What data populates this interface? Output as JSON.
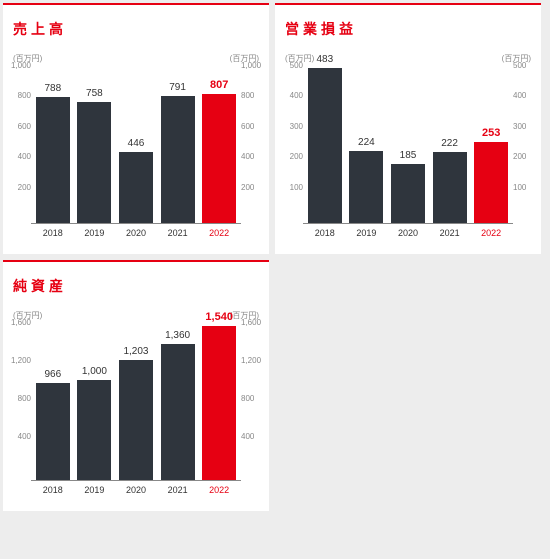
{
  "accent_color": "#e60012",
  "bar_color": "#2f353d",
  "highlight_bar_color": "#e60012",
  "text_color": "#333333",
  "muted_color": "#888888",
  "background": "#ededed",
  "card_background": "#ffffff",
  "unit_label": "(百万円)",
  "charts": [
    {
      "title": "売上高",
      "ymax": 1000,
      "ytick_step": 200,
      "ylabels": [
        "1,000",
        "800",
        "600",
        "400",
        "200"
      ],
      "categories": [
        "2018",
        "2019",
        "2020",
        "2021",
        "2022"
      ],
      "values": [
        788,
        758,
        446,
        791,
        807
      ],
      "value_labels": [
        "788",
        "758",
        "446",
        "791",
        "807"
      ],
      "highlight_index": 4
    },
    {
      "title": "営業損益",
      "ymax": 500,
      "ytick_step": 100,
      "ylabels": [
        "500",
        "400",
        "300",
        "200",
        "100"
      ],
      "categories": [
        "2018",
        "2019",
        "2020",
        "2021",
        "2022"
      ],
      "values": [
        483,
        224,
        185,
        222,
        253
      ],
      "value_labels": [
        "483",
        "224",
        "185",
        "222",
        "253"
      ],
      "highlight_index": 4
    },
    {
      "title": "純資産",
      "ymax": 1600,
      "ytick_step": 400,
      "ylabels": [
        "1,600",
        "1,200",
        "800",
        "400"
      ],
      "categories": [
        "2018",
        "2019",
        "2020",
        "2021",
        "2022"
      ],
      "values": [
        966,
        1000,
        1203,
        1360,
        1540
      ],
      "value_labels": [
        "966",
        "1,000",
        "1,203",
        "1,360",
        "1,540"
      ],
      "highlight_index": 4
    }
  ]
}
